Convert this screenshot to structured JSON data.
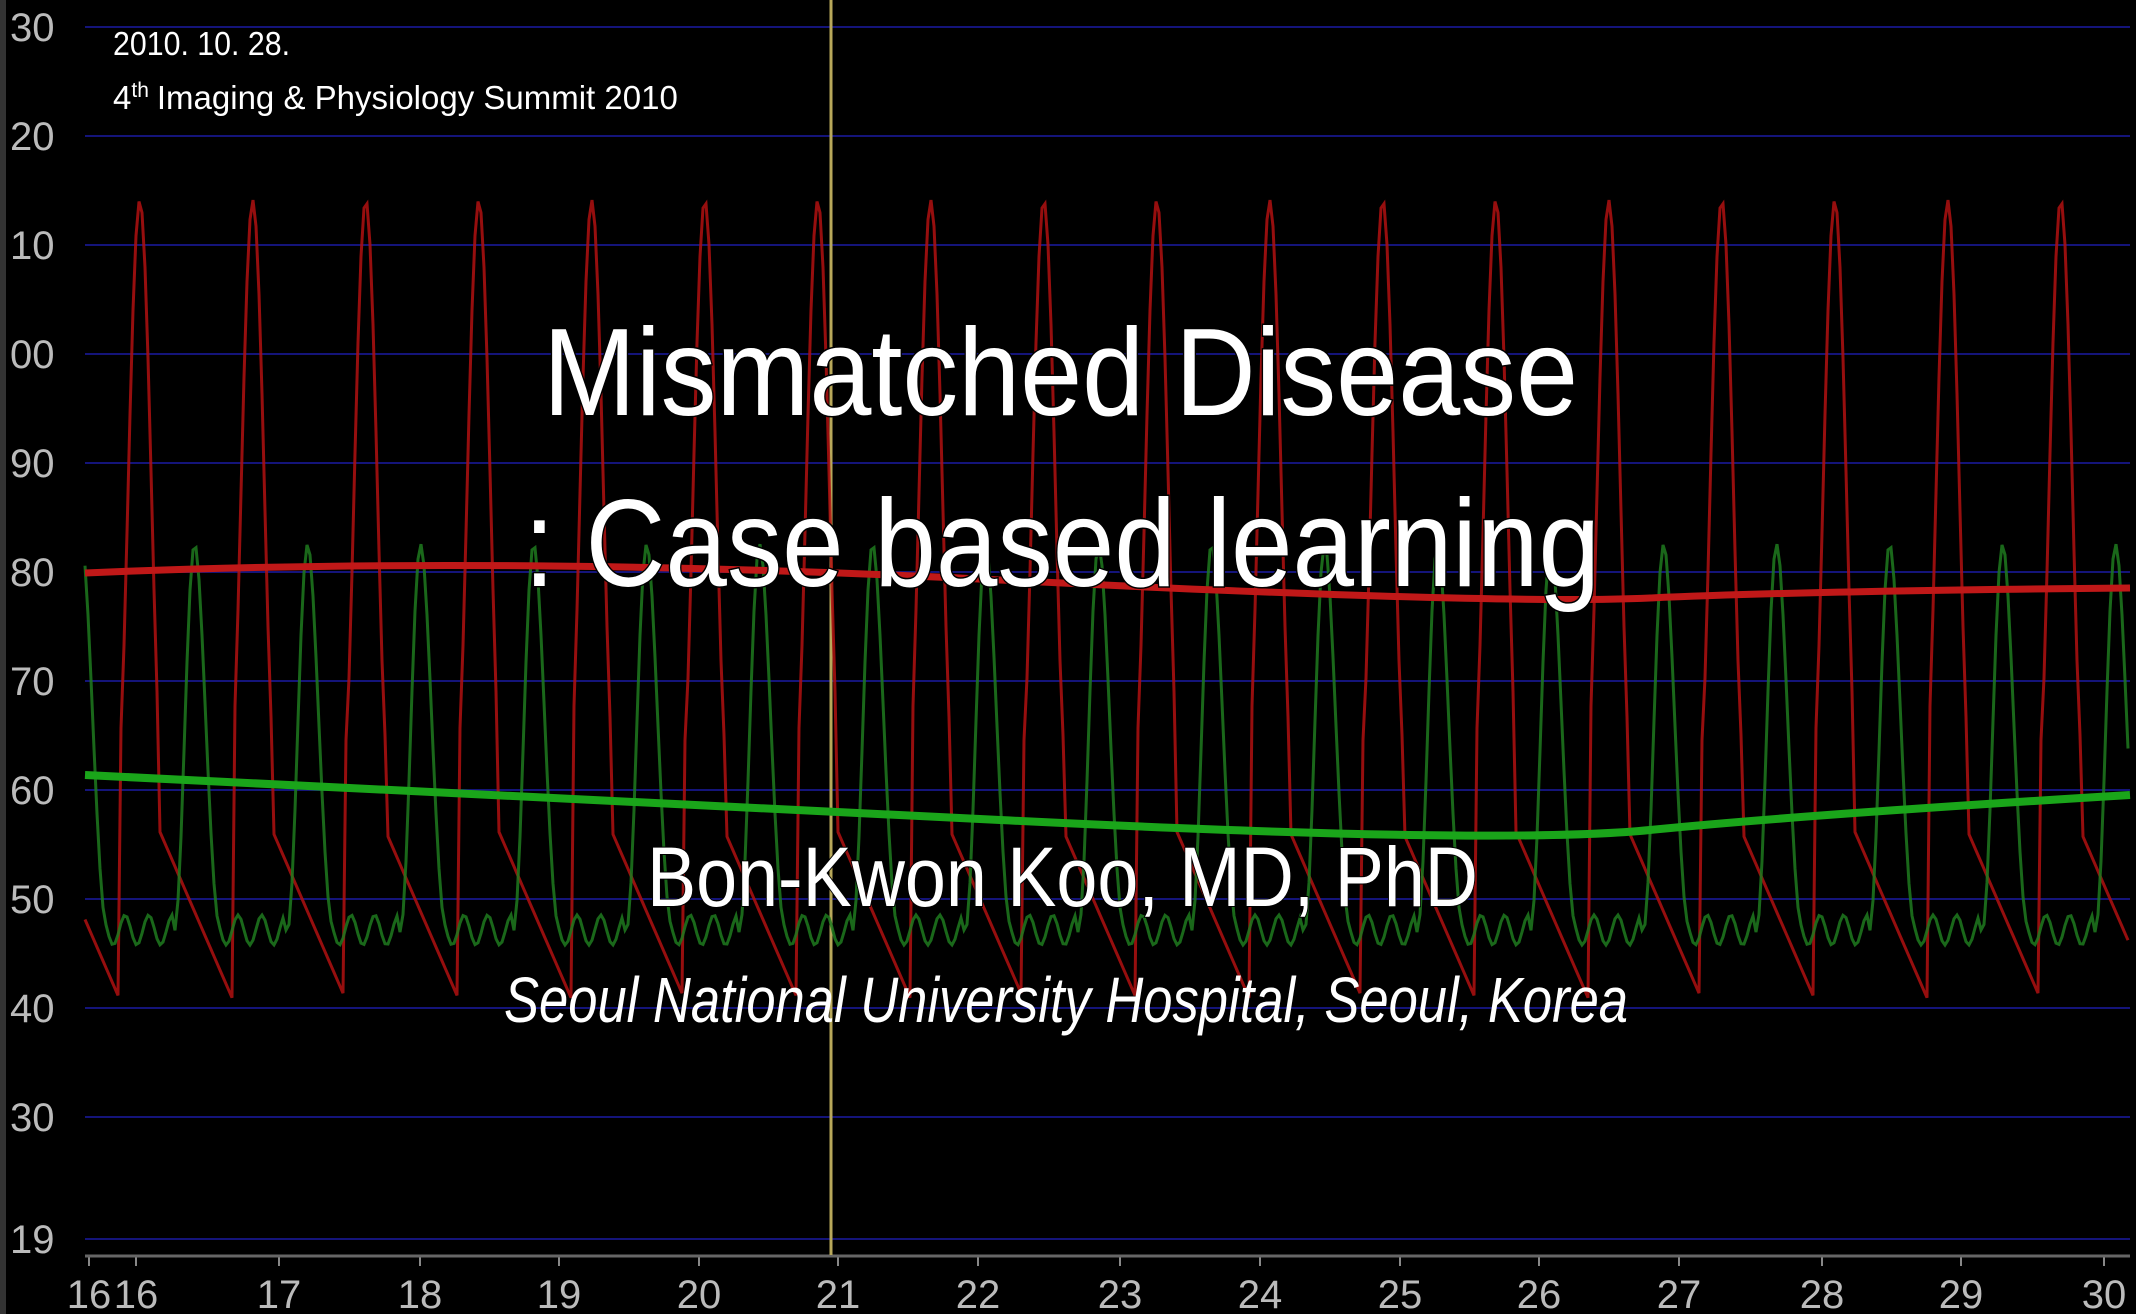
{
  "header": {
    "date": "2010. 10. 28.",
    "conference": {
      "ordinal": "4",
      "ordinal_suffix": "th",
      "name": "Imaging & Physiology Summit 2010"
    }
  },
  "title": {
    "line1": "Mismatched Disease",
    "line2": ": Case based learning"
  },
  "author": "Bon-Kwon Koo, MD, PhD",
  "affiliation": "Seoul National University Hospital, Seoul, Korea",
  "background": {
    "y_labels": [
      "30",
      "20",
      "10",
      "00",
      "90",
      "80",
      "70",
      "60",
      "50",
      "40",
      "30",
      "19"
    ],
    "x_labels": [
      "16",
      "16",
      "17",
      "18",
      "19",
      "20",
      "21",
      "22",
      "23",
      "24",
      "25",
      "26",
      "27",
      "28",
      "29",
      "30"
    ]
  }
}
